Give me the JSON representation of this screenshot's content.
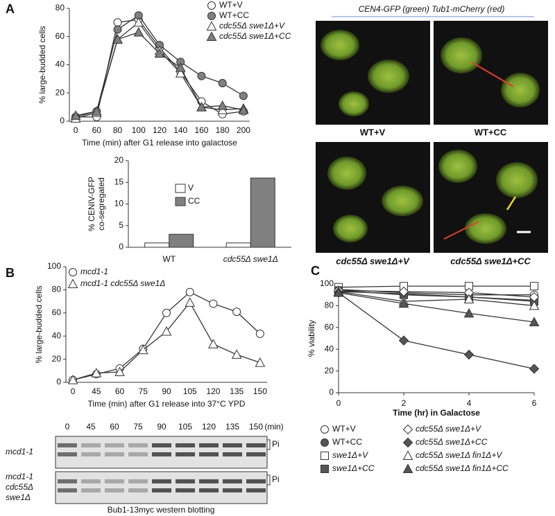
{
  "panel_labels": [
    "A",
    "B",
    "C"
  ],
  "chart_data": [
    {
      "type": "line",
      "categories": [
        "0",
        "60",
        "80",
        "100",
        "120",
        "140",
        "160",
        "180",
        "200"
      ],
      "ylabel": "% large-budded cells",
      "xlabel": "Time (min) after G1 release into galactose",
      "ylim": [
        0,
        80
      ],
      "yticks": [
        0,
        20,
        40,
        60,
        80
      ],
      "legend": "upper right",
      "line_color": "#333333",
      "series": [
        {
          "name": "WT+V",
          "color": "#ffffff",
          "marker": "circle",
          "values": [
            3,
            3,
            70,
            72,
            52,
            35,
            14,
            5,
            7
          ]
        },
        {
          "name": "WT+CC",
          "color": "#808080",
          "marker": "circle",
          "values": [
            3,
            7,
            65,
            75,
            54,
            42,
            32,
            27,
            18
          ]
        },
        {
          "name": "cdc55Δ swe1Δ+V",
          "color": "#ffffff",
          "marker": "triangle",
          "values": [
            2,
            6,
            58,
            70,
            50,
            34,
            10,
            8,
            9
          ]
        },
        {
          "name": "cdc55Δ swe1Δ+CC",
          "color": "#808080",
          "marker": "triangle",
          "values": [
            4,
            7,
            58,
            63,
            48,
            38,
            10,
            11,
            8
          ]
        }
      ]
    },
    {
      "type": "bar",
      "categories": [
        "WT",
        "cdc55Δ swe1Δ"
      ],
      "ylabel": [
        "% CENIV-GFP",
        "co-segregated"
      ],
      "ylim": [
        0,
        20
      ],
      "yticks": [
        0,
        5,
        10,
        15,
        20
      ],
      "legend": "center left",
      "series": [
        {
          "name": "V",
          "color": "#ffffff",
          "values": [
            1,
            1
          ]
        },
        {
          "name": "CC",
          "color": "#808080",
          "values": [
            3,
            16
          ]
        }
      ]
    },
    {
      "type": "line",
      "categories": [
        "0",
        "45",
        "60",
        "75",
        "90",
        "105",
        "120",
        "135",
        "150"
      ],
      "ylabel": "% large-budded cells",
      "xlabel": "Time (min) after G1 release into 37°C YPD",
      "ylim": [
        0,
        100
      ],
      "yticks": [
        0,
        20,
        40,
        60,
        80,
        100
      ],
      "legend": "upper left",
      "line_color": "#333333",
      "series": [
        {
          "name": "mcd1-1",
          "color": "#ffffff",
          "marker": "circle",
          "values": [
            2,
            7,
            12,
            29,
            60,
            78,
            68,
            61,
            42
          ]
        },
        {
          "name": "mcd1-1 cdc55Δ swe1Δ",
          "color": "#ffffff",
          "marker": "triangle",
          "values": [
            2,
            8,
            9,
            28,
            44,
            69,
            33,
            24,
            17
          ]
        }
      ]
    },
    {
      "type": "line",
      "x": [
        0,
        2,
        4,
        6
      ],
      "xlim": [
        0,
        6
      ],
      "xticks": [
        0,
        2,
        4,
        6
      ],
      "ylabel": "% viability",
      "xlabel": "Time (hr) in Galactose",
      "ylim": [
        0,
        100
      ],
      "yticks": [
        0,
        20,
        40,
        60,
        80,
        100
      ],
      "legend": "below",
      "line_color": "#333333",
      "series": [
        {
          "name": "WT+V",
          "color": "#ffffff",
          "marker": "circle",
          "values": [
            95,
            92,
            90,
            90
          ]
        },
        {
          "name": "WT+CC",
          "color": "#555555",
          "marker": "circle",
          "values": [
            93,
            91,
            88,
            85
          ]
        },
        {
          "name": "swe1Δ+V",
          "color": "#ffffff",
          "marker": "square",
          "values": [
            97,
            98,
            98,
            98
          ]
        },
        {
          "name": "swe1Δ+CC",
          "color": "#555555",
          "marker": "square",
          "values": [
            94,
            90,
            88,
            84
          ]
        },
        {
          "name": "cdc55Δ swe1Δ+V",
          "color": "#ffffff",
          "marker": "diamond",
          "values": [
            94,
            93,
            92,
            88
          ]
        },
        {
          "name": "cdc55Δ swe1Δ+CC",
          "color": "#555555",
          "marker": "diamond",
          "values": [
            92,
            48,
            35,
            22
          ]
        },
        {
          "name": "cdc55Δ swe1Δ fin1Δ+V",
          "color": "#ffffff",
          "marker": "triangle",
          "values": [
            93,
            84,
            86,
            80
          ]
        },
        {
          "name": "cdc55Δ swe1Δ fin1Δ+CC",
          "color": "#555555",
          "marker": "triangle",
          "values": [
            92,
            82,
            73,
            65
          ]
        }
      ]
    }
  ],
  "microscopy": {
    "header": "CEN4-GFP (green) Tub1-mCherry (red)",
    "captions": [
      "WT+V",
      "WT+CC",
      "cdc55Δ swe1Δ+V",
      "cdc55Δ swe1Δ+CC"
    ]
  },
  "blot": {
    "lanes": [
      "0",
      "45",
      "60",
      "75",
      "90",
      "105",
      "120",
      "135",
      "150"
    ],
    "unit": "(min)",
    "rows": [
      {
        "label": [
          "mcd1-1"
        ],
        "band": "Pi"
      },
      {
        "label": [
          "mcd1-1",
          "cdc55Δ",
          "swe1Δ"
        ],
        "band": "Pi"
      }
    ],
    "caption": "Bub1-13myc western blotting"
  }
}
